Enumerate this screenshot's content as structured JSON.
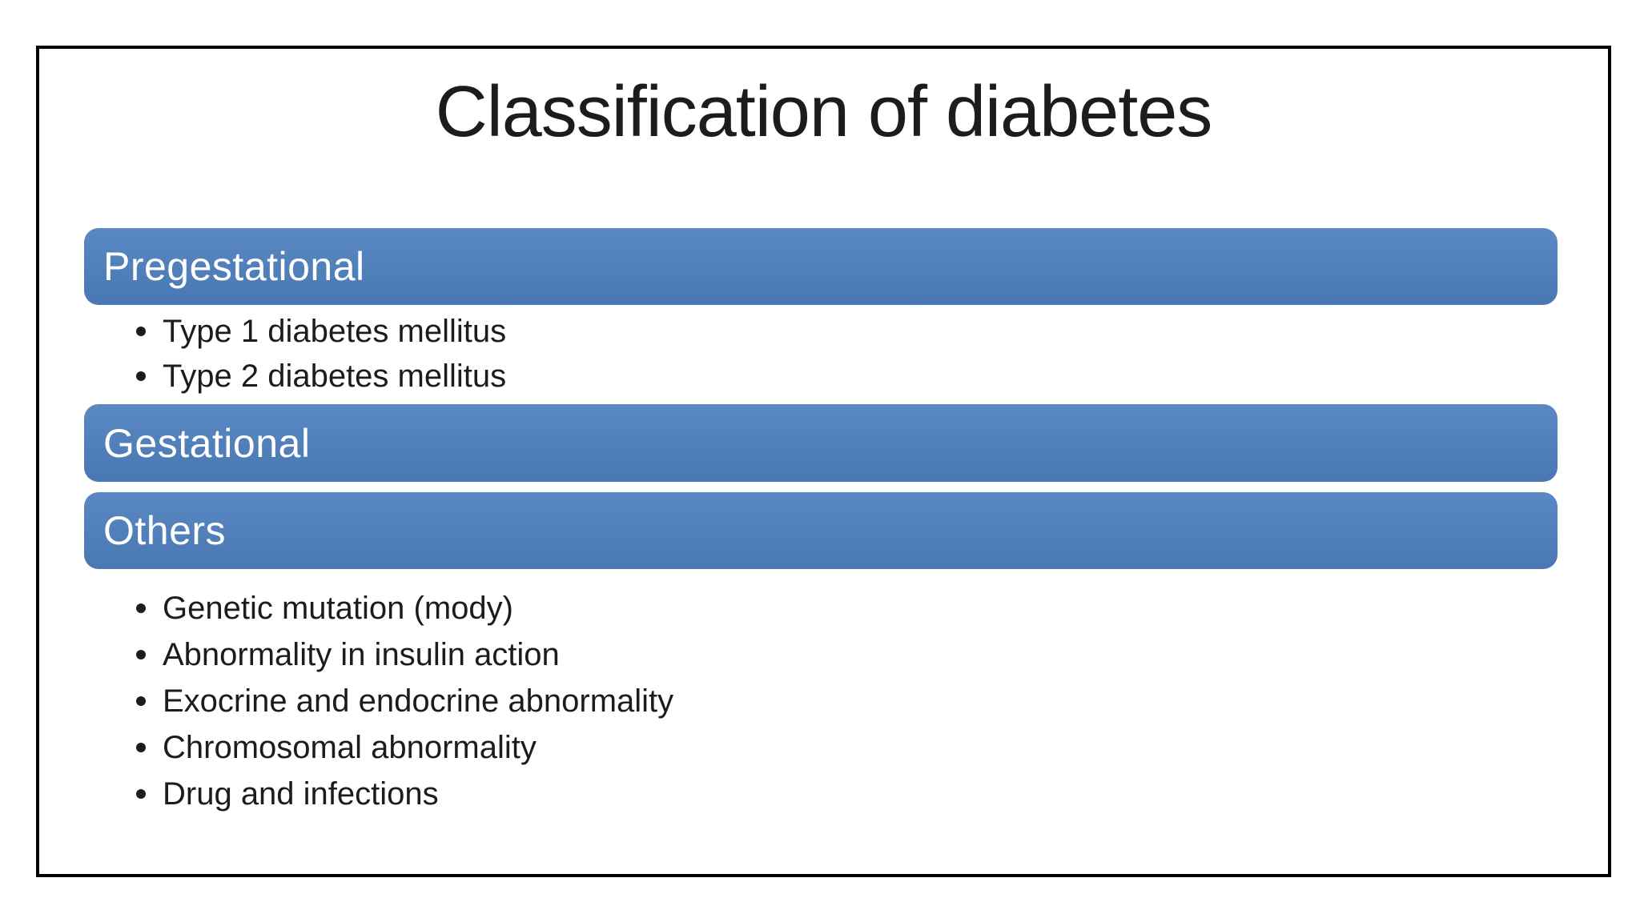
{
  "slide": {
    "title": "Classification of diabetes",
    "sections": [
      {
        "header": "Pregestational",
        "bullets": [
          "Type 1 diabetes mellitus",
          "Type 2 diabetes mellitus"
        ]
      },
      {
        "header": "Gestational",
        "bullets": []
      },
      {
        "header": "Others",
        "bullets": [
          "Genetic mutation (mody)",
          "Abnormality in insulin action",
          "Exocrine and endocrine abnormality",
          "Chromosomal abnormality",
          "Drug and infections"
        ]
      }
    ],
    "colors": {
      "accent_blue": "#4d7fbe",
      "header_text": "#ffffff",
      "body_text": "#1c1c1c",
      "border": "#000000",
      "background": "#ffffff"
    }
  }
}
